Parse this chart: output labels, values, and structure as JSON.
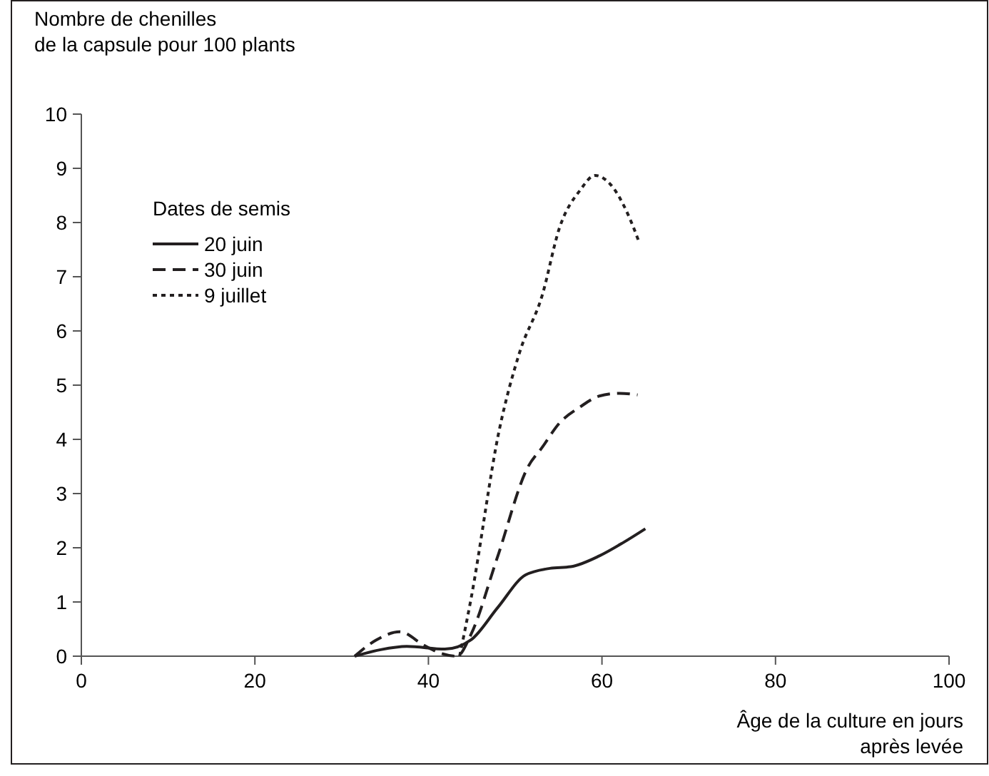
{
  "chart_data": {
    "type": "line",
    "ylabel": "Nombre de chenilles\nde la capsule pour 100 plants",
    "xlabel": "Âge de la culture en jours\naprès levée",
    "legend_title": "Dates de semis",
    "legend": "top left",
    "grid": false,
    "xlim": [
      0,
      100
    ],
    "xticks": [
      0,
      20,
      40,
      60,
      80,
      100
    ],
    "ylim": [
      0,
      10
    ],
    "yticks": [
      0,
      1,
      2,
      3,
      4,
      5,
      6,
      7,
      8,
      9,
      10
    ],
    "series": [
      {
        "name": "20 juin",
        "color": "#231f20",
        "line_style": "solid",
        "x": [
          31.5,
          34.5,
          37.5,
          41.9,
          44.9,
          48,
          51.2,
          54,
          56.4,
          59.7,
          62.5,
          65
        ],
        "values": [
          0,
          0.12,
          0.18,
          0.13,
          0.3,
          0.9,
          1.5,
          1.62,
          1.65,
          1.85,
          2.1,
          2.35
        ]
      },
      {
        "name": "30 juin",
        "color": "#231f20",
        "line_style": "dashed",
        "x": [
          31.5,
          34,
          36.7,
          39.5,
          41.5,
          43.3,
          44.9,
          47.9,
          51.5,
          53.1,
          55.1,
          57.5,
          59.7,
          62,
          64.1
        ],
        "values": [
          0,
          0.3,
          0.45,
          0.2,
          0.05,
          0,
          0.4,
          1.8,
          3.5,
          3.85,
          4.3,
          4.6,
          4.8,
          4.85,
          4.82
        ]
      },
      {
        "name": "9 juillet",
        "color": "#231f20",
        "line_style": "dotted",
        "x": [
          43.6,
          44.9,
          48.2,
          50.5,
          53.1,
          55.1,
          57.5,
          59.2,
          61,
          63,
          64.3
        ],
        "values": [
          0,
          1.05,
          4.2,
          5.6,
          6.65,
          7.9,
          8.6,
          8.87,
          8.7,
          8.15,
          7.63
        ]
      }
    ]
  }
}
